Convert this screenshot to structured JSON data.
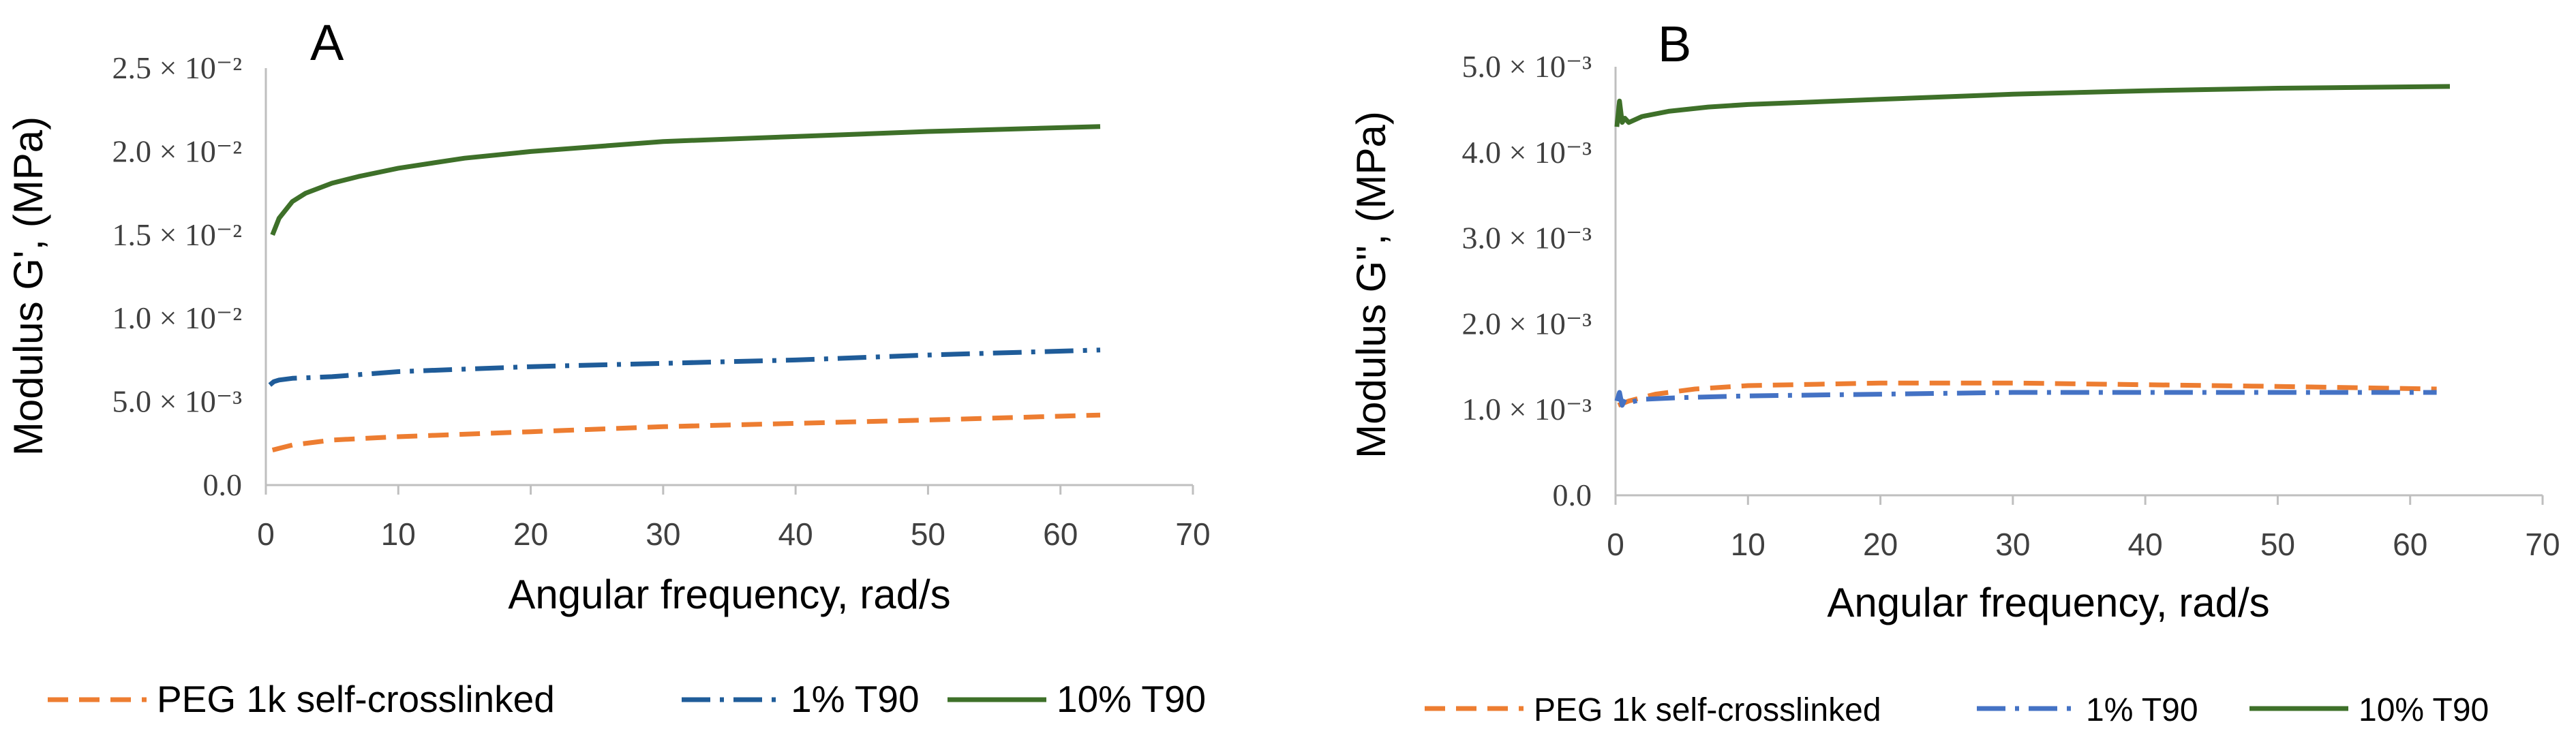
{
  "chart_data": [
    {
      "panel_label": "A",
      "type": "line",
      "xlabel": "Angular frequency, rad/s",
      "ylabel": "Modulus G', (MPa)",
      "xlim": [
        0,
        70
      ],
      "ylim": [
        0,
        0.025
      ],
      "xticks": [
        "0",
        "10",
        "20",
        "30",
        "40",
        "50",
        "60",
        "70"
      ],
      "xtick_values": [
        0,
        10,
        20,
        30,
        40,
        50,
        60,
        70
      ],
      "yticks": [
        "0.0",
        "5.0 × 10⁻³",
        "1.0 × 10⁻²",
        "1.5 × 10⁻²",
        "2.0 × 10⁻²",
        "2.5 × 10⁻²"
      ],
      "ytick_values": [
        0,
        0.005,
        0.01,
        0.015,
        0.02,
        0.025
      ],
      "legend_position": "bottom",
      "series": [
        {
          "name": "PEG 1k self-crosslinked",
          "color": "#ED7D31",
          "dash": "dashed",
          "x": [
            0.5,
            1,
            2,
            5,
            10,
            20,
            30,
            40,
            50,
            63
          ],
          "y": [
            0.0021,
            0.0022,
            0.0024,
            0.0027,
            0.0029,
            0.0032,
            0.0035,
            0.0037,
            0.0039,
            0.0042
          ]
        },
        {
          "name": "1% T90",
          "color": "#1F5C99",
          "dash": "dashdot",
          "x": [
            0.3,
            0.6,
            1,
            2,
            5,
            10,
            20,
            30,
            40,
            50,
            63
          ],
          "y": [
            0.006,
            0.0062,
            0.0063,
            0.0064,
            0.0065,
            0.0068,
            0.0071,
            0.0073,
            0.0075,
            0.0078,
            0.0081
          ]
        },
        {
          "name": "10% T90",
          "color": "#3E7029",
          "dash": "solid",
          "x": [
            0.5,
            1,
            2,
            3,
            5,
            7,
            10,
            15,
            20,
            30,
            40,
            50,
            63
          ],
          "y": [
            0.015,
            0.016,
            0.017,
            0.0175,
            0.0181,
            0.0185,
            0.019,
            0.0196,
            0.02,
            0.0206,
            0.0209,
            0.0212,
            0.0215
          ]
        }
      ]
    },
    {
      "panel_label": "B",
      "type": "line",
      "xlabel": "Angular frequency, rad/s",
      "ylabel": "Modulus G'', (MPa)",
      "xlim": [
        0,
        70
      ],
      "ylim": [
        0,
        0.005
      ],
      "xticks": [
        "0",
        "10",
        "20",
        "30",
        "40",
        "50",
        "60",
        "70"
      ],
      "xtick_values": [
        0,
        10,
        20,
        30,
        40,
        50,
        60,
        70
      ],
      "yticks": [
        "0.0",
        "1.0 × 10⁻³",
        "2.0 × 10⁻³",
        "3.0 × 10⁻³",
        "4.0 × 10⁻³",
        "5.0 × 10⁻³"
      ],
      "ytick_values": [
        0,
        0.001,
        0.002,
        0.003,
        0.004,
        0.005
      ],
      "legend_position": "bottom",
      "series": [
        {
          "name": "PEG 1k self-crosslinked",
          "color": "#ED7D31",
          "dash": "dashed",
          "x": [
            0.2,
            1,
            3,
            6,
            10,
            20,
            30,
            40,
            50,
            62
          ],
          "y": [
            0.00105,
            0.0011,
            0.00118,
            0.00124,
            0.00128,
            0.00131,
            0.00131,
            0.00129,
            0.00127,
            0.00124
          ]
        },
        {
          "name": "1% T90",
          "color": "#4472C4",
          "dash": "dashdot",
          "x": [
            0.1,
            0.3,
            0.5,
            0.7,
            1,
            2,
            5,
            10,
            20,
            30,
            40,
            50,
            62
          ],
          "y": [
            0.0011,
            0.0012,
            0.00105,
            0.00112,
            0.00108,
            0.00112,
            0.00114,
            0.00116,
            0.00118,
            0.0012,
            0.0012,
            0.0012,
            0.0012
          ]
        },
        {
          "name": "10% T90",
          "color": "#3E7029",
          "dash": "solid",
          "x": [
            0.1,
            0.3,
            0.5,
            0.7,
            1,
            2,
            4,
            7,
            10,
            20,
            30,
            40,
            50,
            63
          ],
          "y": [
            0.0043,
            0.0046,
            0.00435,
            0.0044,
            0.00435,
            0.00442,
            0.00448,
            0.00453,
            0.00456,
            0.00462,
            0.00468,
            0.00472,
            0.00475,
            0.00477
          ]
        }
      ]
    }
  ]
}
